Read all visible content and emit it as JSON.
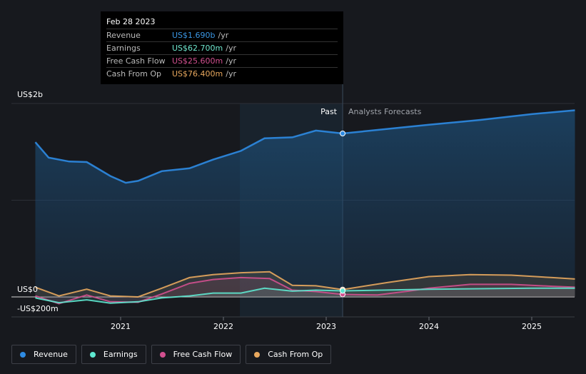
{
  "tooltip": {
    "date": "Feb 28 2023",
    "rows": [
      {
        "label": "Revenue",
        "value": "US$1.690b",
        "unit": "/yr",
        "color": "#3a96e3"
      },
      {
        "label": "Earnings",
        "value": "US$62.700m",
        "unit": "/yr",
        "color": "#70e8cf"
      },
      {
        "label": "Free Cash Flow",
        "value": "US$25.600m",
        "unit": "/yr",
        "color": "#d2508f"
      },
      {
        "label": "Cash From Op",
        "value": "US$76.400m",
        "unit": "/yr",
        "color": "#e8a85e"
      }
    ]
  },
  "labels": {
    "past": "Past",
    "forecast": "Analysts Forecasts"
  },
  "legend": [
    {
      "label": "Revenue",
      "color": "#2e8be3"
    },
    {
      "label": "Earnings",
      "color": "#5ee8d0"
    },
    {
      "label": "Free Cash Flow",
      "color": "#d2508f"
    },
    {
      "label": "Cash From Op",
      "color": "#e8a85e"
    }
  ],
  "chart_data": {
    "type": "line",
    "x_range": [
      2020.1,
      2025.42
    ],
    "y_range": [
      -200,
      2000
    ],
    "y_ticks": [
      {
        "value": 2000,
        "label": "US$2b"
      },
      {
        "value": 0,
        "label": "US$0"
      },
      {
        "value": -200,
        "label": "-US$200m"
      }
    ],
    "x_ticks": [
      {
        "value": 2021,
        "label": "2021"
      },
      {
        "value": 2022,
        "label": "2022"
      },
      {
        "value": 2023,
        "label": "2023"
      },
      {
        "value": 2024,
        "label": "2024"
      },
      {
        "value": 2025,
        "label": "2025"
      }
    ],
    "past_end": 2023.16,
    "highlight_start": 2022.16,
    "series": [
      {
        "name": "Revenue",
        "color": "#2e8be3",
        "past": [
          [
            2020.17,
            1600
          ],
          [
            2020.3,
            1440
          ],
          [
            2020.5,
            1400
          ],
          [
            2020.67,
            1395
          ],
          [
            2020.9,
            1250
          ],
          [
            2021.05,
            1180
          ],
          [
            2021.17,
            1200
          ],
          [
            2021.4,
            1300
          ],
          [
            2021.67,
            1330
          ],
          [
            2021.9,
            1420
          ],
          [
            2022.17,
            1510
          ],
          [
            2022.4,
            1640
          ],
          [
            2022.67,
            1650
          ],
          [
            2022.9,
            1720
          ],
          [
            2023.16,
            1690
          ]
        ],
        "forecast": [
          [
            2023.16,
            1690
          ],
          [
            2024.0,
            1780
          ],
          [
            2024.5,
            1830
          ],
          [
            2025.0,
            1890
          ],
          [
            2025.42,
            1930
          ]
        ]
      },
      {
        "name": "Earnings",
        "color": "#5ee8d0",
        "past": [
          [
            2020.17,
            -10
          ],
          [
            2020.4,
            -60
          ],
          [
            2020.67,
            -30
          ],
          [
            2020.9,
            -65
          ],
          [
            2021.17,
            -50
          ],
          [
            2021.4,
            -10
          ],
          [
            2021.67,
            10
          ],
          [
            2021.9,
            40
          ],
          [
            2022.17,
            40
          ],
          [
            2022.4,
            90
          ],
          [
            2022.67,
            60
          ],
          [
            2022.9,
            70
          ],
          [
            2023.16,
            63
          ]
        ],
        "forecast": [
          [
            2023.16,
            63
          ],
          [
            2024.0,
            80
          ],
          [
            2024.5,
            85
          ],
          [
            2025.0,
            90
          ],
          [
            2025.42,
            90
          ]
        ]
      },
      {
        "name": "Free Cash Flow",
        "color": "#d2508f",
        "past": [
          [
            2020.17,
            10
          ],
          [
            2020.4,
            -70
          ],
          [
            2020.67,
            20
          ],
          [
            2020.9,
            -50
          ],
          [
            2021.17,
            -55
          ],
          [
            2021.4,
            30
          ],
          [
            2021.67,
            140
          ],
          [
            2021.9,
            180
          ],
          [
            2022.17,
            200
          ],
          [
            2022.45,
            190
          ],
          [
            2022.67,
            70
          ],
          [
            2022.9,
            55
          ],
          [
            2023.16,
            26
          ]
        ],
        "forecast": [
          [
            2023.16,
            26
          ],
          [
            2023.5,
            20
          ],
          [
            2023.8,
            60
          ],
          [
            2024.0,
            90
          ],
          [
            2024.4,
            130
          ],
          [
            2024.8,
            130
          ],
          [
            2025.2,
            110
          ],
          [
            2025.42,
            100
          ]
        ]
      },
      {
        "name": "Cash From Op",
        "color": "#e8a85e",
        "past": [
          [
            2020.17,
            100
          ],
          [
            2020.4,
            10
          ],
          [
            2020.67,
            80
          ],
          [
            2020.9,
            10
          ],
          [
            2021.17,
            0
          ],
          [
            2021.4,
            90
          ],
          [
            2021.67,
            200
          ],
          [
            2021.9,
            230
          ],
          [
            2022.17,
            250
          ],
          [
            2022.45,
            260
          ],
          [
            2022.67,
            120
          ],
          [
            2022.9,
            115
          ],
          [
            2023.16,
            76
          ]
        ],
        "forecast": [
          [
            2023.16,
            76
          ],
          [
            2023.6,
            150
          ],
          [
            2024.0,
            210
          ],
          [
            2024.4,
            230
          ],
          [
            2024.8,
            225
          ],
          [
            2025.2,
            200
          ],
          [
            2025.42,
            185
          ]
        ]
      }
    ]
  }
}
